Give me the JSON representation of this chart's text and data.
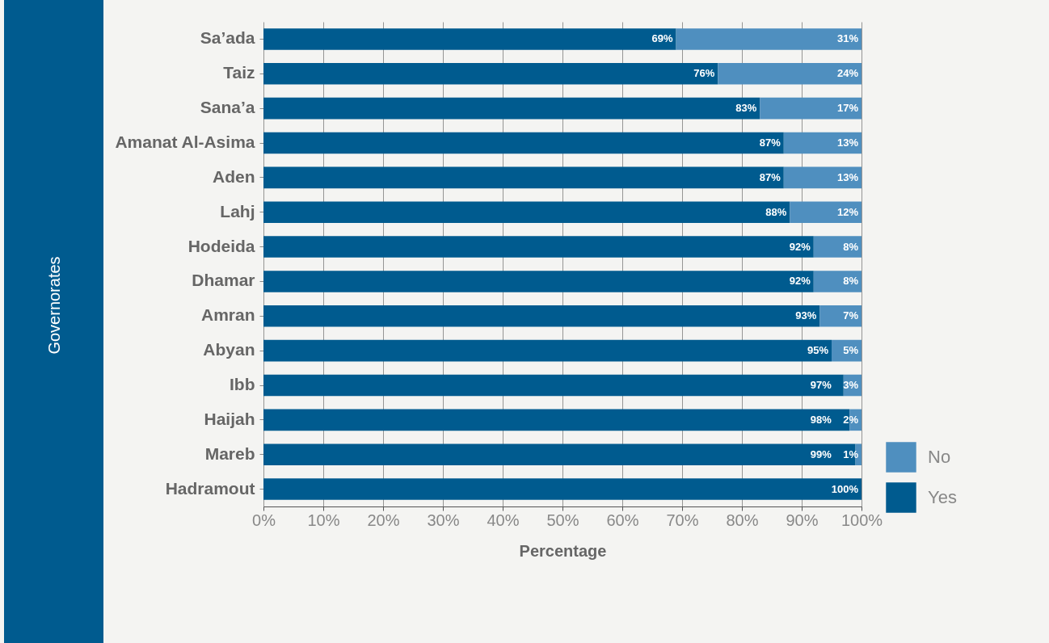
{
  "chart_data": {
    "type": "bar",
    "orientation": "horizontal",
    "stacked": true,
    "xlabel": "Percentage",
    "ylabel": "Governorates",
    "categories": [
      "Sa’ada",
      "Taiz",
      "Sana’a",
      "Amanat Al-Asima",
      "Aden",
      "Lahj",
      "Hodeida",
      "Dhamar",
      "Amran",
      "Abyan",
      "Ibb",
      "Haijah",
      "Mareb",
      "Hadramout"
    ],
    "series": [
      {
        "name": "Yes",
        "color": "#005b8f",
        "values": [
          69,
          76,
          83,
          87,
          87,
          88,
          92,
          92,
          93,
          95,
          97,
          98,
          99,
          100
        ],
        "value_labels": [
          "69%",
          "76%",
          "83%",
          "87%",
          "87%",
          "88%",
          "92%",
          "92%",
          "93%",
          "95%",
          "97%",
          "98%",
          "99%",
          "100%"
        ]
      },
      {
        "name": "No",
        "color": "#4f8fbf",
        "values": [
          31,
          24,
          17,
          13,
          13,
          12,
          8,
          8,
          7,
          5,
          3,
          2,
          1,
          0
        ],
        "value_labels": [
          "31%",
          "24%",
          "17%",
          "13%",
          "13%",
          "12%",
          "8%",
          "8%",
          "7%",
          "5%",
          "3%",
          "2%",
          "1%",
          null
        ]
      }
    ],
    "xlim": [
      0,
      100
    ],
    "xticks": [
      {
        "value": 0,
        "label": "0%"
      },
      {
        "value": 10,
        "label": "10%"
      },
      {
        "value": 20,
        "label": "20%"
      },
      {
        "value": 30,
        "label": "30%"
      },
      {
        "value": 40,
        "label": "40%"
      },
      {
        "value": 50,
        "label": "50%"
      },
      {
        "value": 60,
        "label": "60%"
      },
      {
        "value": 70,
        "label": "70%"
      },
      {
        "value": 80,
        "label": "80%"
      },
      {
        "value": 90,
        "label": "90%"
      },
      {
        "value": 100,
        "label": "100%"
      }
    ],
    "grid": "x",
    "legend": "bottom right"
  }
}
